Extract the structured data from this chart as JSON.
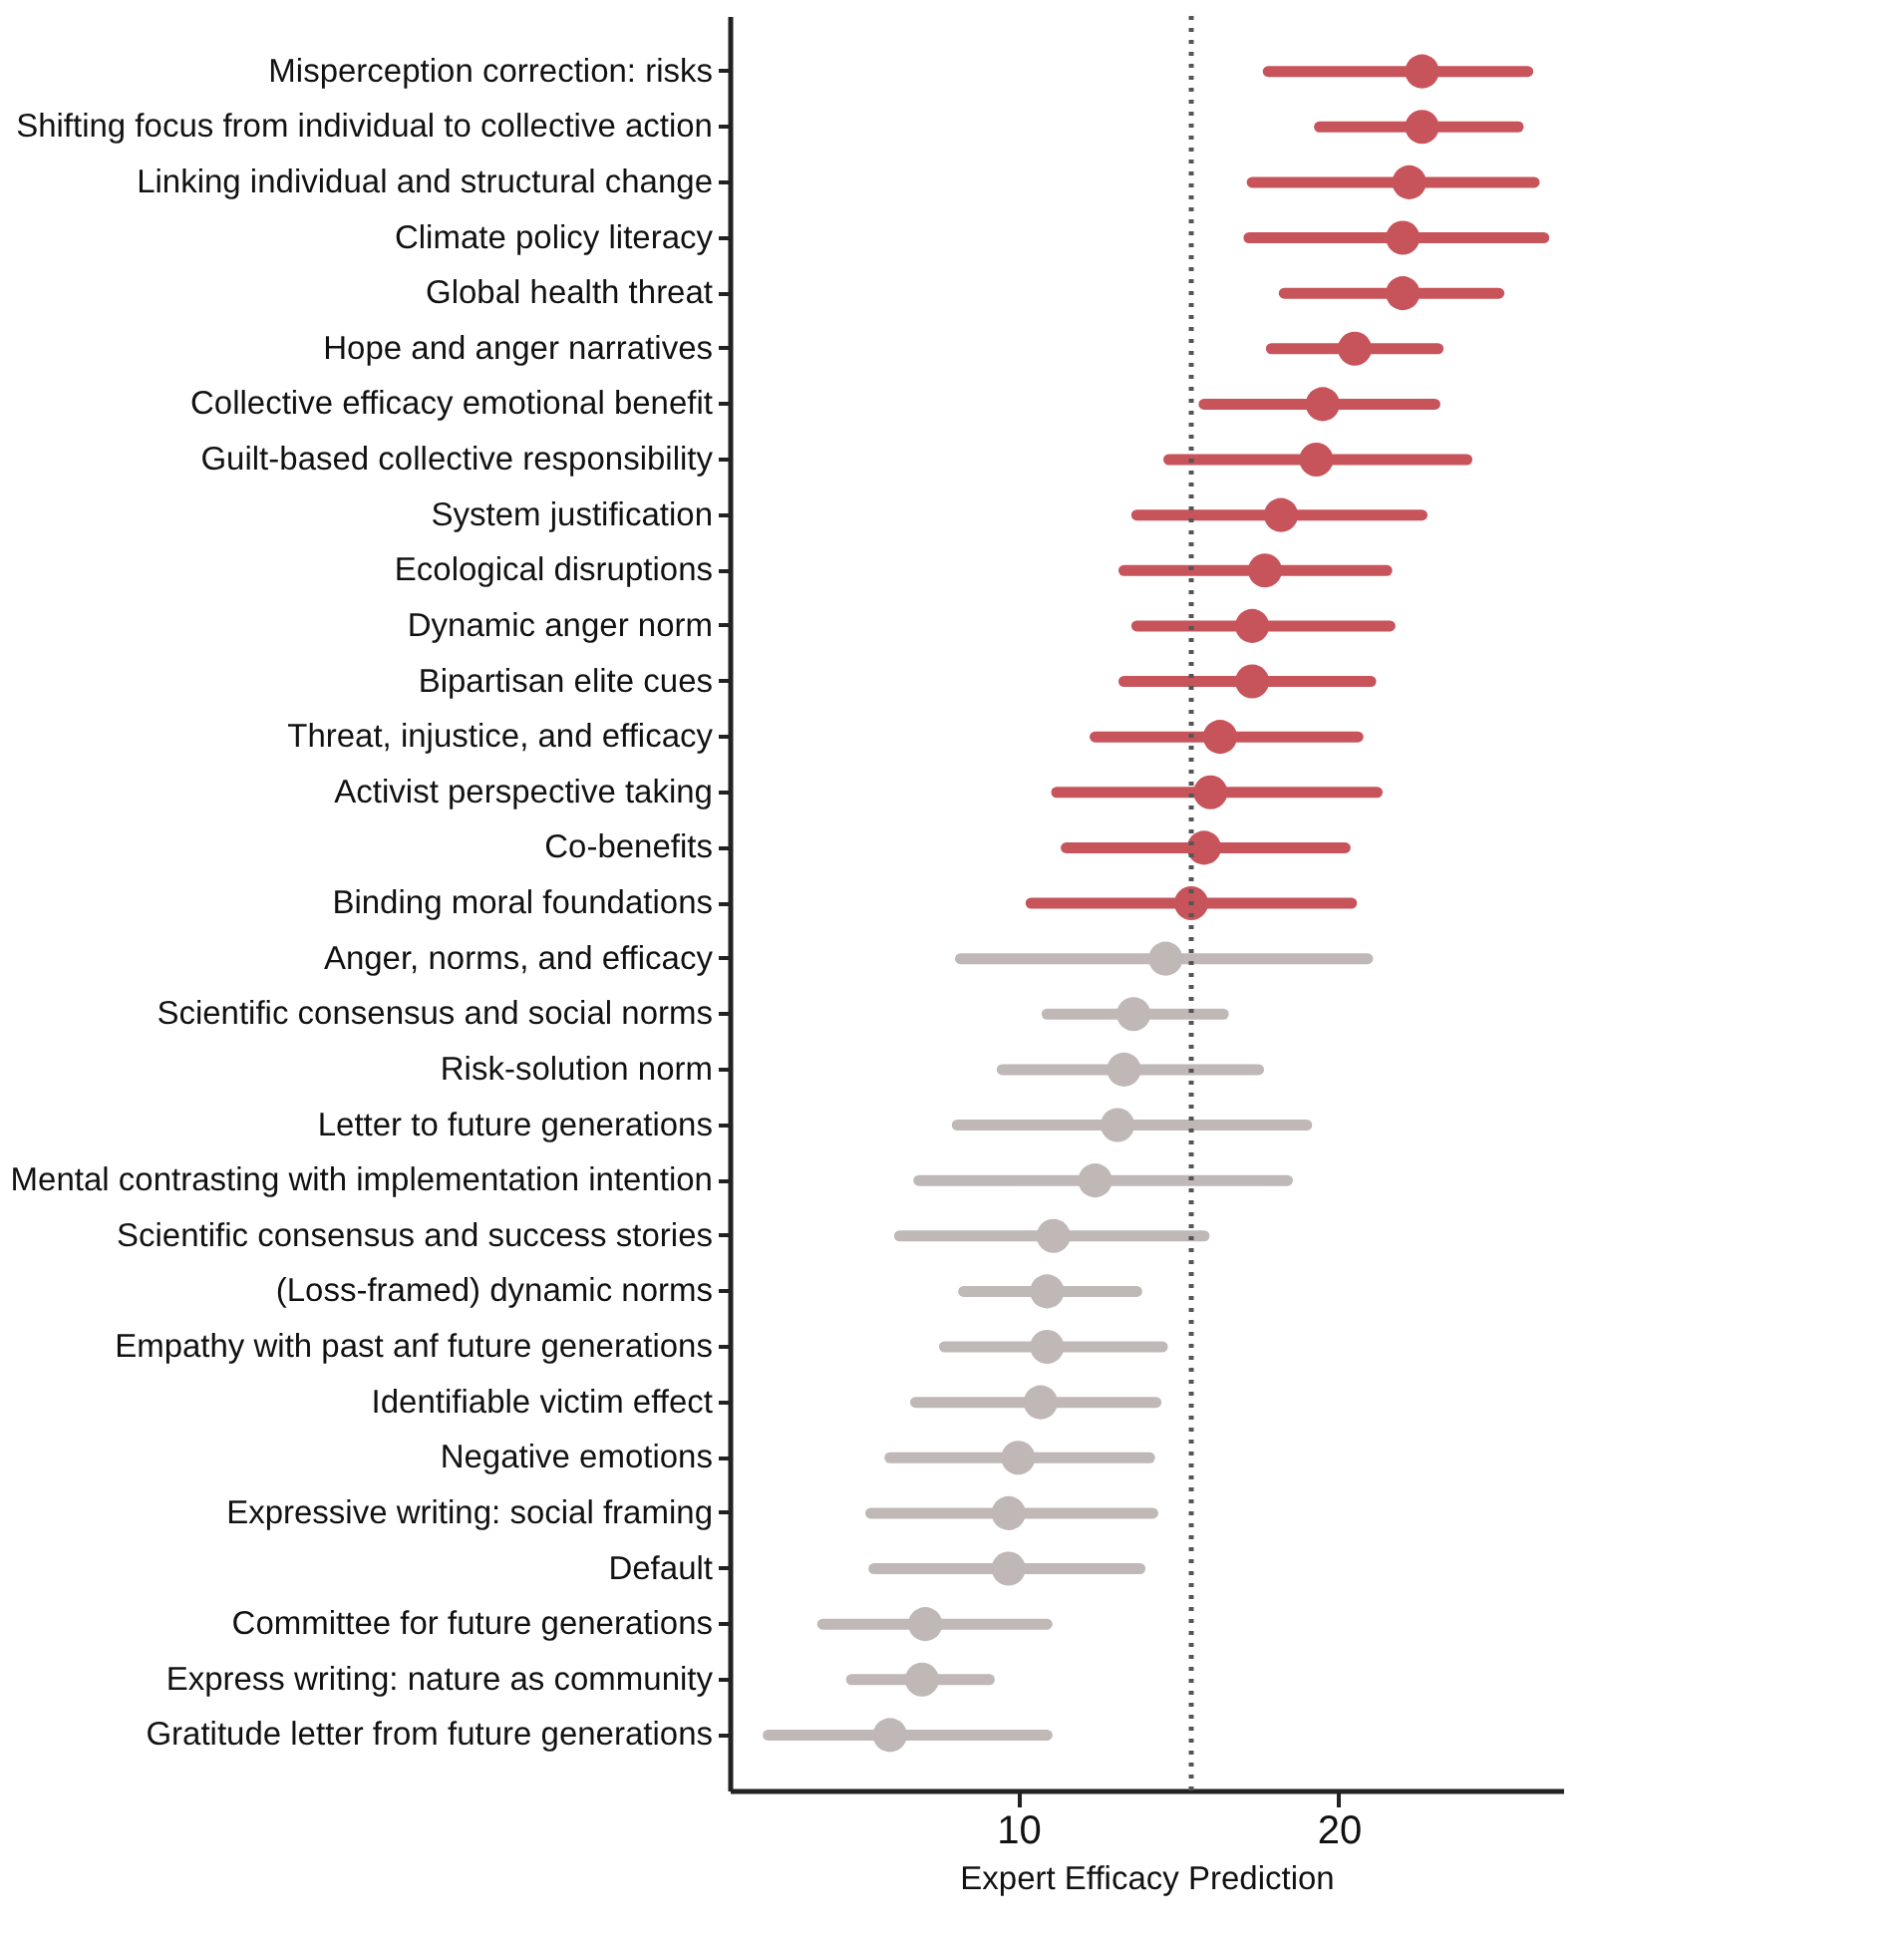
{
  "chart_data": {
    "type": "scatter",
    "orientation": "horizontal",
    "xlabel": "Expert Efficacy Prediction",
    "categories": [
      "Misperception correction: risks",
      "Shifting focus from individual to collective action",
      "Linking individual and structural change",
      "Climate policy literacy",
      "Global health threat",
      "Hope and anger narratives",
      "Collective efficacy emotional benefit",
      "Guilt-based collective responsibility",
      "System justification",
      "Ecological disruptions",
      "Dynamic anger norm",
      "Bipartisan elite cues",
      "Threat, injustice, and efficacy",
      "Activist perspective taking",
      "Co-benefits",
      "Binding moral foundations",
      "Anger, norms, and efficacy",
      "Scientific consensus and social norms",
      "Risk-solution norm",
      "Letter to future generations",
      "Mental contrasting with implementation intention",
      "Scientific consensus and success stories",
      "(Loss-framed) dynamic norms",
      "Empathy with past anf future generations",
      "Identifiable victim effect",
      "Negative emotions",
      "Expressive writing: social framing",
      "Default",
      "Committee for future generations",
      "Express writing: nature as community",
      "Gratitude letter from future generations"
    ],
    "values": [
      22.6,
      22.6,
      22.2,
      22.0,
      22.0,
      20.5,
      19.5,
      19.3,
      18.2,
      17.7,
      17.3,
      17.3,
      16.3,
      16.0,
      15.8,
      15.4,
      14.6,
      13.6,
      13.3,
      13.1,
      12.4,
      11.1,
      10.9,
      10.9,
      10.7,
      10.0,
      9.7,
      9.7,
      7.1,
      7.0,
      6.0
    ],
    "errors": [
      [
        17.8,
        25.9
      ],
      [
        19.4,
        25.6
      ],
      [
        17.3,
        26.1
      ],
      [
        17.2,
        26.4
      ],
      [
        18.3,
        25.0
      ],
      [
        17.9,
        23.1
      ],
      [
        15.8,
        23.0
      ],
      [
        14.7,
        24.0
      ],
      [
        13.7,
        22.6
      ],
      [
        13.3,
        21.5
      ],
      [
        13.7,
        21.6
      ],
      [
        13.3,
        21.0
      ],
      [
        12.4,
        20.6
      ],
      [
        11.2,
        21.2
      ],
      [
        11.5,
        20.2
      ],
      [
        10.4,
        20.4
      ],
      [
        8.2,
        20.9
      ],
      [
        10.9,
        16.4
      ],
      [
        9.5,
        17.5
      ],
      [
        8.1,
        19.0
      ],
      [
        6.9,
        18.4
      ],
      [
        6.3,
        15.8
      ],
      [
        8.3,
        13.7
      ],
      [
        7.7,
        14.5
      ],
      [
        6.8,
        14.3
      ],
      [
        6.0,
        14.1
      ],
      [
        5.4,
        14.2
      ],
      [
        5.5,
        13.8
      ],
      [
        3.9,
        10.9
      ],
      [
        4.8,
        9.1
      ],
      [
        2.2,
        10.9
      ]
    ],
    "colors": [
      "#c8545b",
      "#c8545b",
      "#c8545b",
      "#c8545b",
      "#c8545b",
      "#c8545b",
      "#c8545b",
      "#c8545b",
      "#c8545b",
      "#c8545b",
      "#c8545b",
      "#c8545b",
      "#c8545b",
      "#c8545b",
      "#c8545b",
      "#c8545b",
      "#bfb8b6",
      "#bfb8b6",
      "#bfb8b6",
      "#bfb8b6",
      "#bfb8b6",
      "#bfb8b6",
      "#bfb8b6",
      "#bfb8b6",
      "#bfb8b6",
      "#bfb8b6",
      "#bfb8b6",
      "#bfb8b6",
      "#bfb8b6",
      "#bfb8b6",
      "#bfb8b6"
    ],
    "xlim": [
      1,
      27
    ],
    "xticks": [
      10,
      20
    ],
    "ref_lines": [
      {
        "axis": "x",
        "value": 15.4,
        "line_style": "dotted",
        "color": "#555555"
      }
    ],
    "marker": "circle",
    "grid": false
  }
}
